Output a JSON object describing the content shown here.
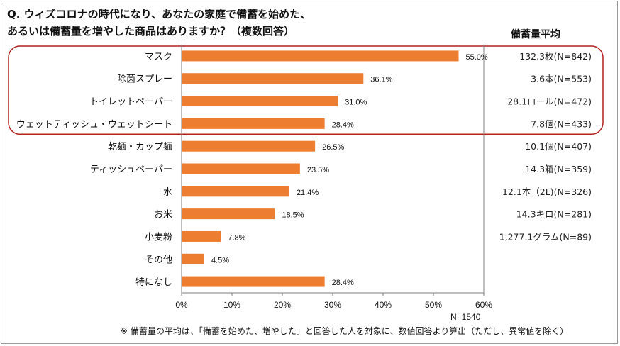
{
  "question": {
    "line1": "Q. ウィズコロナの時代になり、あなたの家庭で備蓄を始めた、",
    "line2": "あるいは備蓄量を増やした商品はありますか？（複数回答）"
  },
  "avg_header": "備蓄量平均",
  "sample_size": "N=1540",
  "footnote": "※ 備蓄量の平均は、「備蓄を始めた、増やした」と回答した人を対象に、数値回答より算出（ただし、異常値を除く）",
  "colors": {
    "bar": "#ED7D31",
    "highlight": "#B22222",
    "axis": "#7f7f7f"
  },
  "chart_data": {
    "type": "bar",
    "orientation": "horizontal",
    "categories": [
      "マスク",
      "除菌スプレー",
      "トイレットペーパー",
      "ウェットティッシュ・ウェットシート",
      "乾麺・カップ麺",
      "ティッシュペーパー",
      "水",
      "お米",
      "小麦粉",
      "その他",
      "特になし"
    ],
    "values": [
      55.0,
      36.1,
      31.0,
      28.4,
      26.5,
      23.5,
      21.4,
      18.5,
      7.8,
      4.5,
      28.4
    ],
    "value_labels": [
      "55.0%",
      "36.1%",
      "31.0%",
      "28.4%",
      "26.5%",
      "23.5%",
      "21.4%",
      "18.5%",
      "7.8%",
      "4.5%",
      "28.4%"
    ],
    "averages": [
      "132.3枚(N=842)",
      "3.6本(N=553)",
      "28.1ロール(N=472)",
      "7.8個(N=433)",
      "10.1個(N=407)",
      "14.3箱(N=359)",
      "12.1本（2L)(N=326)",
      "14.3キロ(N=281)",
      "1,277.1グラム(N=89)",
      "",
      ""
    ],
    "xlim": [
      0,
      60
    ],
    "xticks": [
      "0%",
      "10%",
      "20%",
      "30%",
      "40%",
      "50%",
      "60%"
    ],
    "highlighted_rows": [
      0,
      1,
      2,
      3
    ],
    "grid": false,
    "xlabel": "",
    "ylabel": ""
  }
}
